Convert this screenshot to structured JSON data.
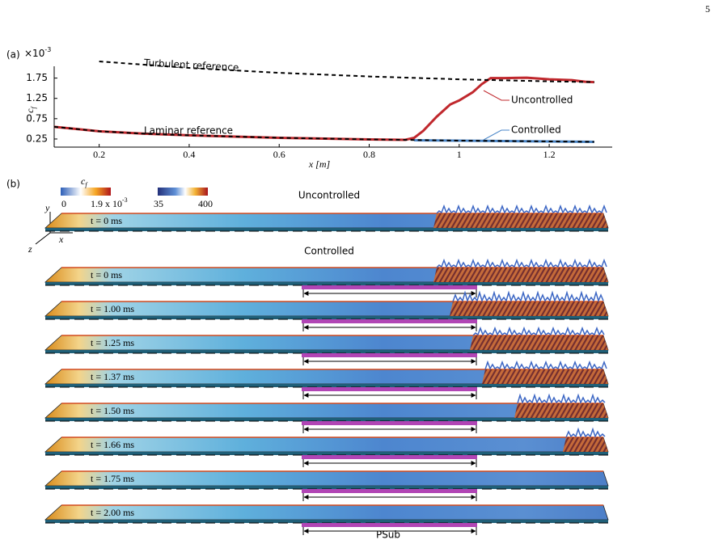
{
  "page_number": "5",
  "chart_data": {
    "type": "line",
    "panel_label": "(a)",
    "y_multiplier": "×10",
    "y_multiplier_exponent": "-3",
    "ylabel": "c",
    "ylabel_subscript": "f",
    "xlabel": "x [m]",
    "xlim": [
      0.1,
      1.34
    ],
    "ylim": [
      0.05,
      2.2
    ],
    "xticks": [
      0.2,
      0.4,
      0.6,
      0.8,
      1.0,
      1.2
    ],
    "yticks": [
      0.25,
      0.75,
      1.25,
      1.75
    ],
    "series": [
      {
        "name": "Turbulent reference",
        "color": "#000000",
        "dash": true,
        "x": [
          0.2,
          0.4,
          0.6,
          0.8,
          1.0,
          1.2,
          1.3
        ],
        "values": [
          2.16,
          2.0,
          1.88,
          1.79,
          1.72,
          1.67,
          1.65
        ]
      },
      {
        "name": "Laminar reference",
        "color": "#000000",
        "dash": true,
        "x": [
          0.1,
          0.2,
          0.3,
          0.4,
          0.6,
          0.8,
          1.0,
          1.2,
          1.3
        ],
        "values": [
          0.55,
          0.44,
          0.38,
          0.34,
          0.28,
          0.24,
          0.21,
          0.19,
          0.18
        ]
      },
      {
        "name": "Uncontrolled",
        "color": "#c0282d",
        "dash": false,
        "x": [
          0.1,
          0.2,
          0.3,
          0.4,
          0.6,
          0.8,
          0.88,
          0.9,
          0.92,
          0.95,
          0.98,
          1.0,
          1.03,
          1.05,
          1.07,
          1.1,
          1.15,
          1.2,
          1.25,
          1.28,
          1.3
        ],
        "values": [
          0.55,
          0.44,
          0.38,
          0.34,
          0.28,
          0.24,
          0.23,
          0.28,
          0.45,
          0.8,
          1.1,
          1.2,
          1.4,
          1.6,
          1.75,
          1.75,
          1.76,
          1.72,
          1.7,
          1.66,
          1.65
        ]
      },
      {
        "name": "Controlled",
        "color": "#4a86c8",
        "dash": false,
        "x": [
          0.9,
          1.0,
          1.1,
          1.2,
          1.3
        ],
        "values": [
          0.22,
          0.21,
          0.2,
          0.19,
          0.18
        ]
      }
    ]
  },
  "panel_b": {
    "panel_label": "(b)",
    "cf_colorbar": {
      "label": "c",
      "label_subscript": "f",
      "min_label": "0",
      "max_label": "1.9 x 10",
      "max_label_exponent": "-3"
    },
    "second_colorbar": {
      "min_label": "35",
      "max_label": "400"
    },
    "axes": {
      "y": "y",
      "x": "x",
      "z": "z"
    },
    "uncontrolled_title": "Uncontrolled",
    "controlled_title": "Controlled",
    "uncontrolled_time": "t = 0 ms",
    "controlled_times": [
      "t = 0 ms",
      "t = 1.00 ms",
      "t = 1.25 ms",
      "t = 1.37 ms",
      "t = 1.50 ms",
      "t = 1.66 ms",
      "t = 1.75 ms",
      "t = 2.00 ms"
    ],
    "region_label": "PSub"
  }
}
